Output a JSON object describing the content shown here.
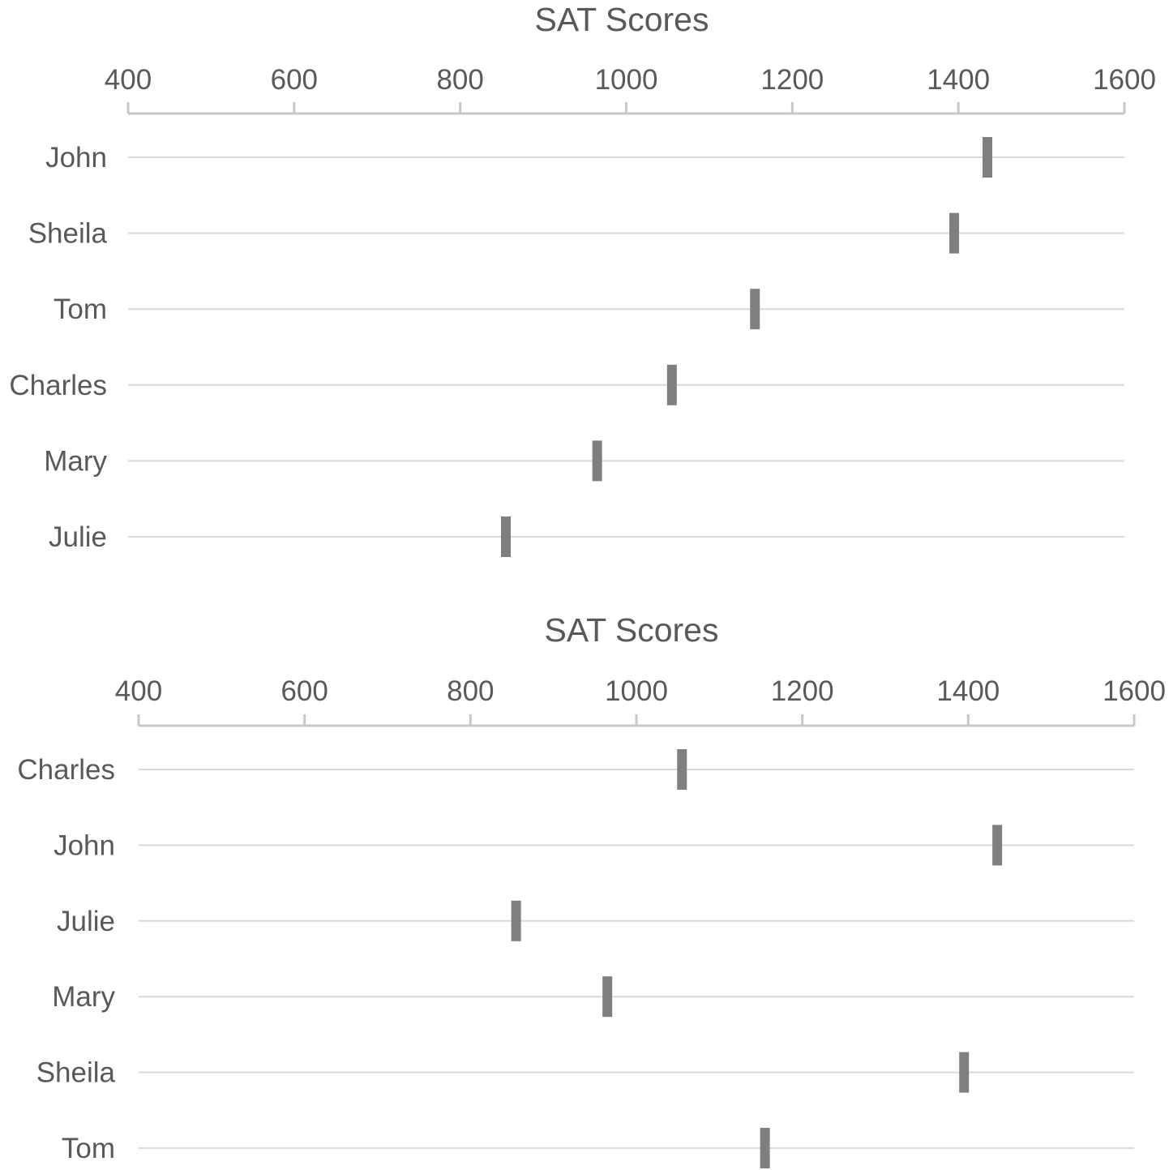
{
  "colors": {
    "marker": "#7f7f7f",
    "axis": "#c8c8c8",
    "grid": "#d9d9d9",
    "text": "#595959"
  },
  "chart_data": [
    {
      "type": "scatter",
      "marker": "vertical-bar",
      "title": "SAT Scores",
      "xlabel": "",
      "ylabel": "",
      "xlim": [
        400,
        1600
      ],
      "xticks": [
        400,
        600,
        800,
        1000,
        1200,
        1400,
        1600
      ],
      "x_axis_position": "top",
      "grid": "horizontal",
      "categories": [
        "John",
        "Sheila",
        "Tom",
        "Charles",
        "Mary",
        "Julie"
      ],
      "values": [
        1435,
        1395,
        1155,
        1055,
        965,
        855
      ]
    },
    {
      "type": "scatter",
      "marker": "vertical-bar",
      "title": "SAT Scores",
      "xlabel": "",
      "ylabel": "",
      "xlim": [
        400,
        1600
      ],
      "xticks": [
        400,
        600,
        800,
        1000,
        1200,
        1400,
        1600
      ],
      "x_axis_position": "top",
      "grid": "horizontal",
      "categories": [
        "Charles",
        "John",
        "Julie",
        "Mary",
        "Sheila",
        "Tom"
      ],
      "values": [
        1055,
        1435,
        855,
        965,
        1395,
        1155
      ]
    }
  ]
}
